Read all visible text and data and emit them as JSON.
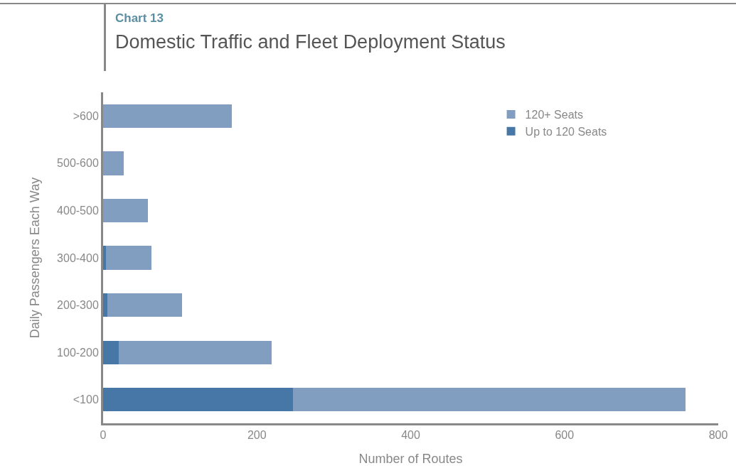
{
  "chart_data": {
    "type": "bar",
    "orientation": "horizontal",
    "stacked": true,
    "subtitle": "Chart 13",
    "title": "Domestic Traffic and Fleet  Deployment Status",
    "xlabel": "Number of Routes",
    "ylabel": "Daily Passengers Each Way",
    "categories": [
      ">600",
      "500-600",
      "400-500",
      "300-400",
      "200-300",
      "100-200",
      "<100"
    ],
    "series": [
      {
        "name": "Up to 120 Seats",
        "color": "#4777a6",
        "values": [
          0,
          0,
          0,
          4,
          6,
          20,
          247
        ]
      },
      {
        "name": "120+ Seats",
        "color": "#819ec1",
        "values": [
          167,
          27,
          58,
          59,
          97,
          199,
          510
        ]
      }
    ],
    "xlim": [
      0,
      800
    ],
    "xticks": [
      0,
      200,
      400,
      600,
      800
    ],
    "grid": false,
    "legend": "top right"
  }
}
